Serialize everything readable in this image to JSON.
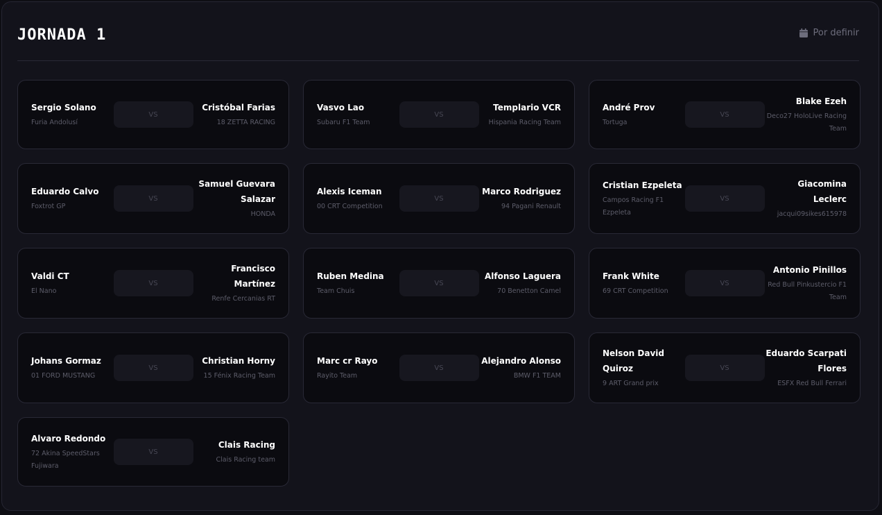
{
  "header": {
    "title": "JORNADA 1",
    "date_icon": "calendar-icon",
    "date_label": "Por definir"
  },
  "vs_label": "VS",
  "matches": [
    {
      "home": {
        "name": "Sergio Solano",
        "team": "Furia Andolusí"
      },
      "away": {
        "name": "Cristóbal Farias",
        "team": "18 ZETTA RACING"
      }
    },
    {
      "home": {
        "name": "Vasvo Lao",
        "team": "Subaru F1 Team"
      },
      "away": {
        "name": "Templario VCR",
        "team": "Hispania Racing Team"
      }
    },
    {
      "home": {
        "name": "André Prov",
        "team": "Tortuga"
      },
      "away": {
        "name": "Blake Ezeh",
        "team": "Deco27 HoloLive Racing Team"
      }
    },
    {
      "home": {
        "name": "Eduardo Calvo",
        "team": "Foxtrot GP"
      },
      "away": {
        "name": "Samuel Guevara Salazar",
        "team": "HONDA"
      }
    },
    {
      "home": {
        "name": "Alexis Iceman",
        "team": "00 CRT Competition"
      },
      "away": {
        "name": "Marco Rodriguez",
        "team": "94 Pagani Renault"
      }
    },
    {
      "home": {
        "name": "Cristian Ezpeleta",
        "team": "Campos Racing F1 Ezpeleta"
      },
      "away": {
        "name": "Giacomina Leclerc",
        "team": "jacqui09sikes615978"
      }
    },
    {
      "home": {
        "name": "Valdi CT",
        "team": "El Nano"
      },
      "away": {
        "name": "Francisco Martínez",
        "team": "Renfe Cercanias RT"
      }
    },
    {
      "home": {
        "name": "Ruben Medina",
        "team": "Team Chuis"
      },
      "away": {
        "name": "Alfonso Laguera",
        "team": "70 Benetton Camel"
      }
    },
    {
      "home": {
        "name": "Frank White",
        "team": "69 CRT Competition"
      },
      "away": {
        "name": "Antonio Pinillos",
        "team": "Red Bull Pinkustercio F1 Team"
      }
    },
    {
      "home": {
        "name": "Johans Gormaz",
        "team": "01 FORD MUSTANG"
      },
      "away": {
        "name": "Christian Horny",
        "team": "15 Fénix Racing Team"
      }
    },
    {
      "home": {
        "name": "Marc cr Rayo",
        "team": "Rayito Team"
      },
      "away": {
        "name": "Alejandro Alonso",
        "team": "BMW F1 TEAM"
      }
    },
    {
      "home": {
        "name": "Nelson David Quiroz",
        "team": "9 ART Grand prix"
      },
      "away": {
        "name": "Eduardo Scarpati Flores",
        "team": "ESFX Red Bull Ferrari"
      }
    },
    {
      "home": {
        "name": "Alvaro Redondo",
        "team": "72 Akina SpeedStars Fujiwara"
      },
      "away": {
        "name": "Clais Racing",
        "team": "Clais Racing team"
      }
    }
  ]
}
